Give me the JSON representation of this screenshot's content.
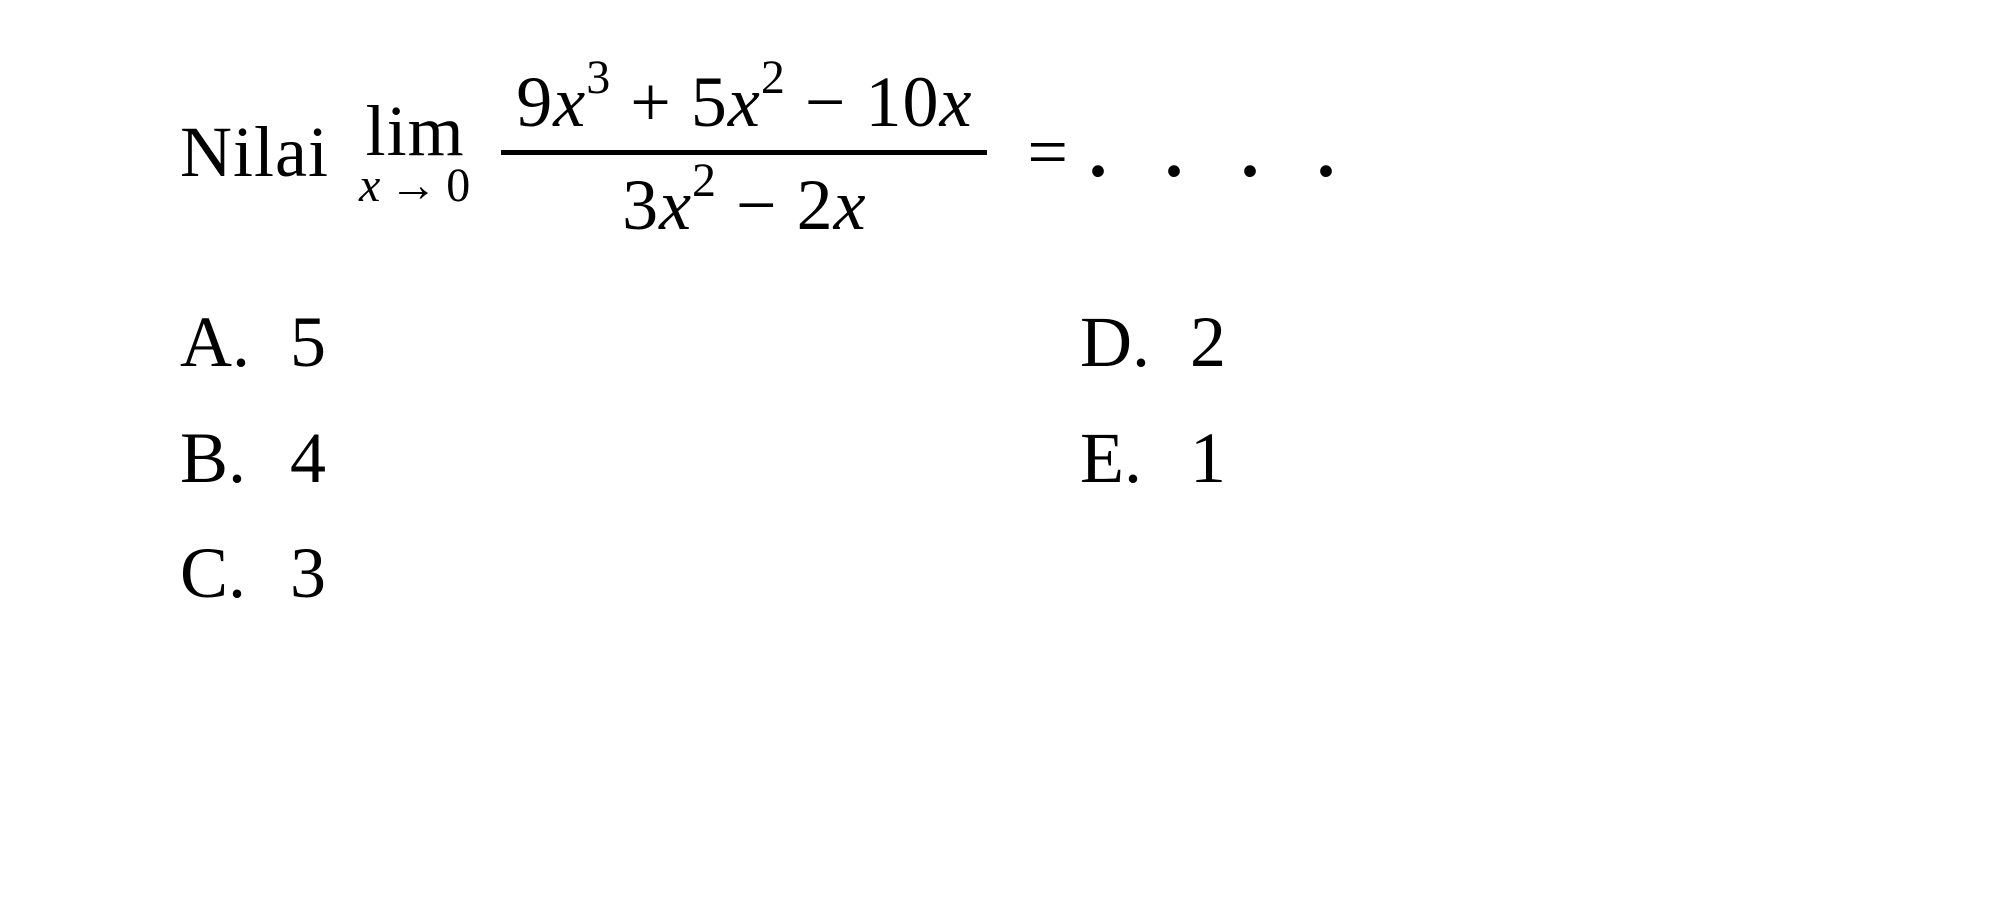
{
  "question": {
    "prefix": "Nilai",
    "limit": {
      "label": "lim",
      "variable": "x",
      "arrow": "→",
      "approaches": "0"
    },
    "fraction": {
      "numerator": {
        "term1_coef": "9",
        "term1_var": "x",
        "term1_exp": "3",
        "op1": "+",
        "term2_coef": "5",
        "term2_var": "x",
        "term2_exp": "2",
        "op2": "−",
        "term3_coef": "10",
        "term3_var": "x"
      },
      "denominator": {
        "term1_coef": "3",
        "term1_var": "x",
        "term1_exp": "2",
        "op1": "−",
        "term2_coef": "2",
        "term2_var": "x"
      }
    },
    "equals": "=",
    "dots": ". . . ."
  },
  "options": {
    "A": {
      "letter": "A.",
      "value": "5"
    },
    "B": {
      "letter": "B.",
      "value": "4"
    },
    "C": {
      "letter": "C.",
      "value": "3"
    },
    "D": {
      "letter": "D.",
      "value": "2"
    },
    "E": {
      "letter": "E.",
      "value": "1"
    }
  },
  "style": {
    "font_family": "Times New Roman",
    "font_size_main": 72,
    "font_size_sub": 48,
    "font_size_sup": 48,
    "text_color": "#000000",
    "background_color": "#ffffff",
    "fraction_bar_width": 5
  }
}
